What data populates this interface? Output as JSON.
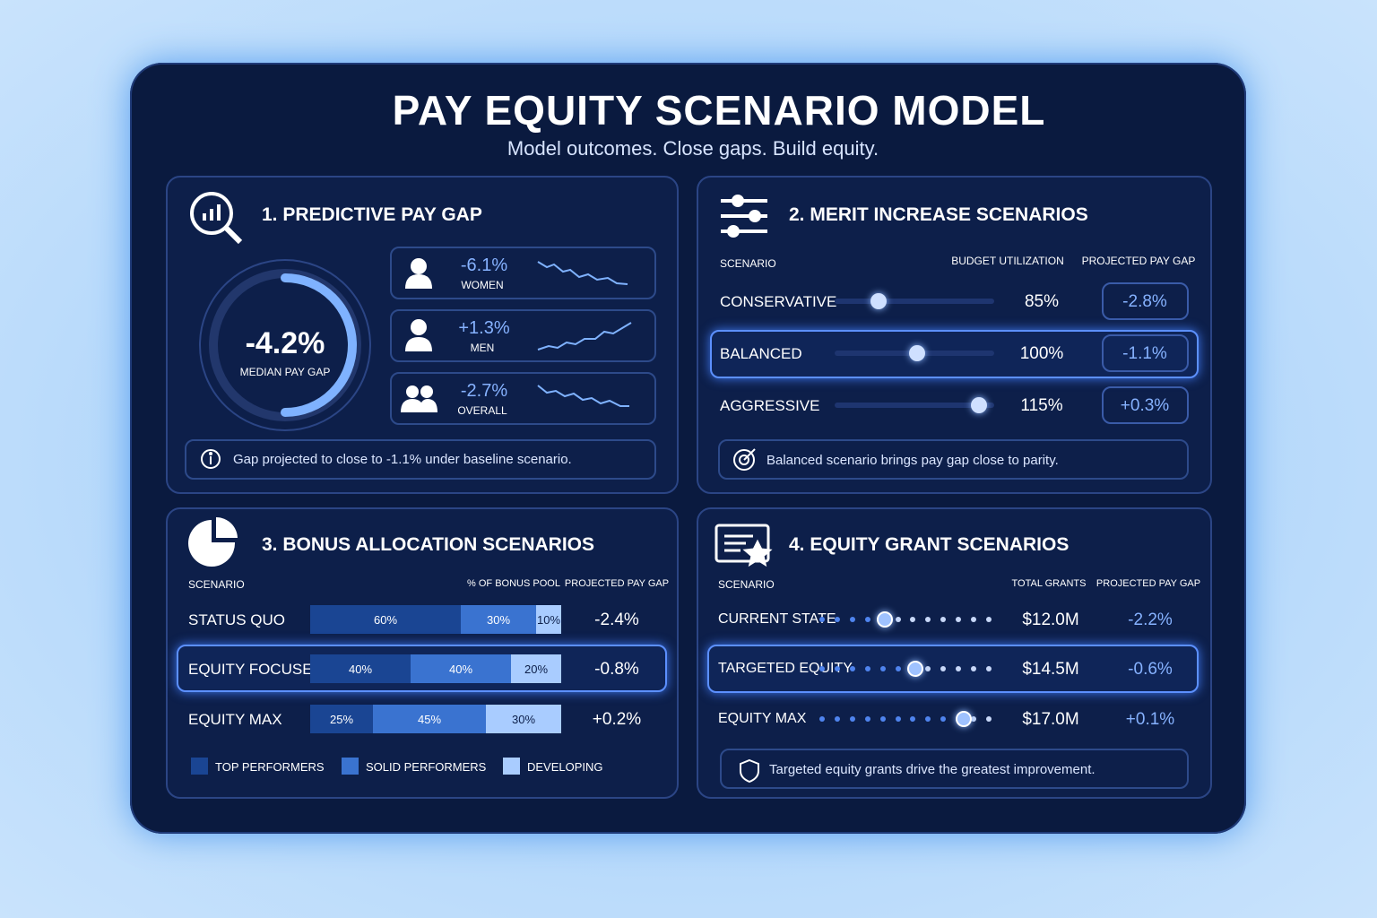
{
  "header": {
    "title": "PAY EQUITY SCENARIO MODEL",
    "subtitle": "Model outcomes. Close gaps. Build equity."
  },
  "predictive": {
    "title": "1. PREDICTIVE PAY GAP",
    "gauge": {
      "value": "-4.2%",
      "label": "MEDIAN PAY GAP"
    },
    "groups": [
      {
        "value": "-6.1%",
        "label": "WOMEN"
      },
      {
        "value": "+1.3%",
        "label": "MEN"
      },
      {
        "value": "-2.7%",
        "label": "OVERALL"
      }
    ],
    "note": "Gap projected to close to -1.1% under baseline scenario."
  },
  "merit": {
    "title": "2. MERIT INCREASE SCENARIOS",
    "columns": [
      "SCENARIO",
      "BUDGET UTILIZATION",
      "PROJECTED PAY GAP"
    ],
    "rows": [
      {
        "scenario": "CONSERVATIVE",
        "budget": "85%",
        "gap": "-2.8%"
      },
      {
        "scenario": "BALANCED",
        "budget": "100%",
        "gap": "-1.1%"
      },
      {
        "scenario": "AGGRESSIVE",
        "budget": "115%",
        "gap": "+0.3%"
      }
    ],
    "note": "Balanced scenario brings pay gap close to parity."
  },
  "bonus": {
    "title": "3. BONUS ALLOCATION SCENARIOS",
    "columns": [
      "SCENARIO",
      "% OF BONUS POOL",
      "PROJECTED PAY GAP"
    ],
    "rows": [
      {
        "scenario": "STATUS QUO",
        "segments": [
          {
            "value": 60,
            "label": "60%"
          },
          {
            "value": 30,
            "label": "30%"
          },
          {
            "value": 10,
            "label": "10%"
          }
        ],
        "gap": "-2.4%"
      },
      {
        "scenario": "EQUITY FOCUSED",
        "segments": [
          {
            "value": 40,
            "label": "40%"
          },
          {
            "value": 40,
            "label": "40%"
          },
          {
            "value": 20,
            "label": "20%"
          }
        ],
        "gap": "-0.8%"
      },
      {
        "scenario": "EQUITY MAX",
        "segments": [
          {
            "value": 25,
            "label": "25%"
          },
          {
            "value": 45,
            "label": "45%"
          },
          {
            "value": 30,
            "label": "30%"
          }
        ],
        "gap": "+0.2%"
      }
    ],
    "legend": [
      "TOP PERFORMERS",
      "SOLID PERFORMERS",
      "DEVELOPING"
    ]
  },
  "equity": {
    "title": "4.  EQUITY GRANT SCENARIOS",
    "columns": [
      "SCENARIO",
      "TOTAL GRANTS",
      "PROJECTED PAY GAP"
    ],
    "rows": [
      {
        "scenario": "CURRENT STATE",
        "grants": "$12.0M",
        "gap": "-2.2%"
      },
      {
        "scenario": "TARGETED EQUITY",
        "grants": "$14.5M",
        "gap": "-0.6%"
      },
      {
        "scenario": "EQUITY MAX",
        "grants": "$17.0M",
        "gap": "+0.1%"
      }
    ],
    "note": "Targeted equity grants drive the greatest improvement."
  }
}
